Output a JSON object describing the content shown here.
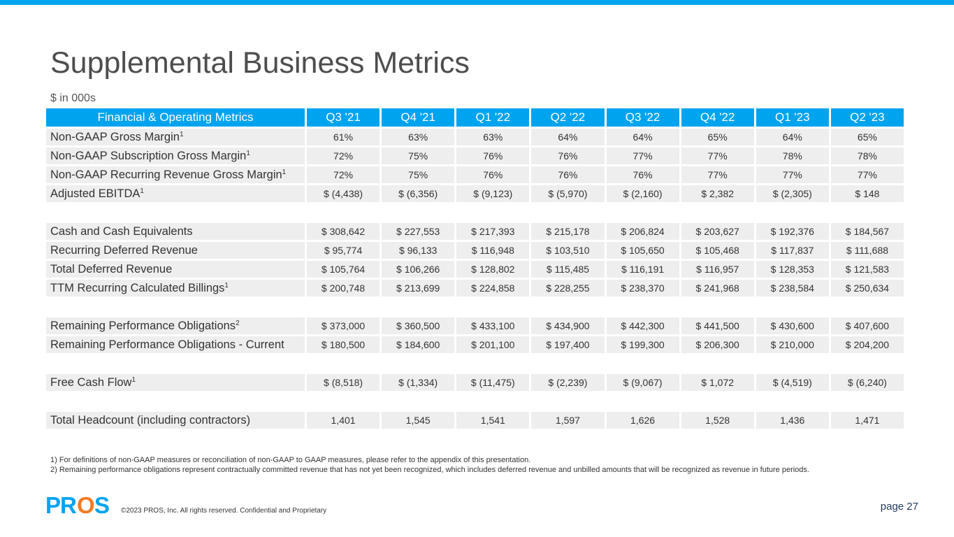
{
  "title": "Supplemental Business Metrics",
  "units": "$ in 000s",
  "table": {
    "header": [
      "Financial & Operating Metrics",
      "Q3 '21",
      "Q4 '21",
      "Q1 '22",
      "Q2 '22",
      "Q3 '22",
      "Q4 '22",
      "Q1 '23",
      "Q2 '23"
    ],
    "rows": [
      {
        "label": "Non-GAAP Gross Margin",
        "sup": "1",
        "values": [
          "61%",
          "63%",
          "63%",
          "64%",
          "64%",
          "65%",
          "64%",
          "65%"
        ]
      },
      {
        "label": "Non-GAAP Subscription Gross Margin",
        "sup": "1",
        "values": [
          "72%",
          "75%",
          "76%",
          "76%",
          "77%",
          "77%",
          "78%",
          "78%"
        ]
      },
      {
        "label": "Non-GAAP Recurring Revenue Gross Margin",
        "sup": "1",
        "values": [
          "72%",
          "75%",
          "76%",
          "76%",
          "76%",
          "77%",
          "77%",
          "77%"
        ]
      },
      {
        "label": "Adjusted EBITDA",
        "sup": "1",
        "values": [
          "$ (4,438)",
          "$ (6,356)",
          "$ (9,123)",
          "$ (5,970)",
          "$ (2,160)",
          "$ 2,382",
          "$ (2,305)",
          "$ 148"
        ]
      },
      {
        "spacer": true
      },
      {
        "label": "Cash and Cash Equivalents",
        "sup": "",
        "values": [
          "$ 308,642",
          "$ 227,553",
          "$ 217,393",
          "$ 215,178",
          "$ 206,824",
          "$ 203,627",
          "$ 192,376",
          "$ 184,567"
        ]
      },
      {
        "label": "Recurring Deferred Revenue",
        "sup": "",
        "values": [
          "$ 95,774",
          "$ 96,133",
          "$ 116,948",
          "$ 103,510",
          "$ 105,650",
          "$ 105,468",
          "$ 117,837",
          "$ 111,688"
        ]
      },
      {
        "label": "Total Deferred Revenue",
        "sup": "",
        "values": [
          "$ 105,764",
          "$ 106,266",
          "$ 128,802",
          "$ 115,485",
          "$ 116,191",
          "$ 116,957",
          "$ 128,353",
          "$ 121,583"
        ]
      },
      {
        "label": "TTM Recurring Calculated Billings",
        "sup": "1",
        "values": [
          "$ 200,748",
          "$ 213,699",
          "$ 224,858",
          "$ 228,255",
          "$ 238,370",
          "$ 241,968",
          "$ 238,584",
          "$ 250,634"
        ]
      },
      {
        "spacer": true
      },
      {
        "label": "Remaining Performance Obligations",
        "sup": "2",
        "values": [
          "$ 373,000",
          "$ 360,500",
          "$ 433,100",
          "$ 434,900",
          "$ 442,300",
          "$ 441,500",
          "$ 430,600",
          "$ 407,600"
        ]
      },
      {
        "label": "Remaining Performance Obligations - Current",
        "sup": "",
        "values": [
          "$ 180,500",
          "$ 184,600",
          "$ 201,100",
          "$ 197,400",
          "$ 199,300",
          "$ 206,300",
          "$ 210,000",
          "$ 204,200"
        ]
      },
      {
        "spacer": true
      },
      {
        "label": "Free Cash Flow",
        "sup": "1",
        "values": [
          "$ (8,518)",
          "$ (1,334)",
          "$ (11,475)",
          "$ (2,239)",
          "$ (9,067)",
          "$ 1,072",
          "$ (4,519)",
          "$ (6,240)"
        ]
      },
      {
        "spacer": true
      },
      {
        "label": "Total Headcount (including contractors)",
        "sup": "",
        "values": [
          "1,401",
          "1,545",
          "1,541",
          "1,597",
          "1,626",
          "1,528",
          "1,436",
          "1,471"
        ]
      }
    ]
  },
  "footnotes": [
    "1) For definitions of non-GAAP measures or reconciliation of non-GAAP to GAAP measures, please refer to the appendix of this presentation.",
    "2) Remaining performance obligations represent contractually committed revenue that has not yet been recognized, which includes deferred revenue and unbilled amounts that will be recognized as revenue in future periods."
  ],
  "footer": {
    "logo_text": "PROS",
    "copyright": "©2023 PROS, Inc. All rights reserved. Confidential and Proprietary",
    "page": "page 27"
  },
  "colors": {
    "accent": "#00a3ee",
    "logo_orange": "#f47b20",
    "row_bg": "#eeeeee"
  }
}
